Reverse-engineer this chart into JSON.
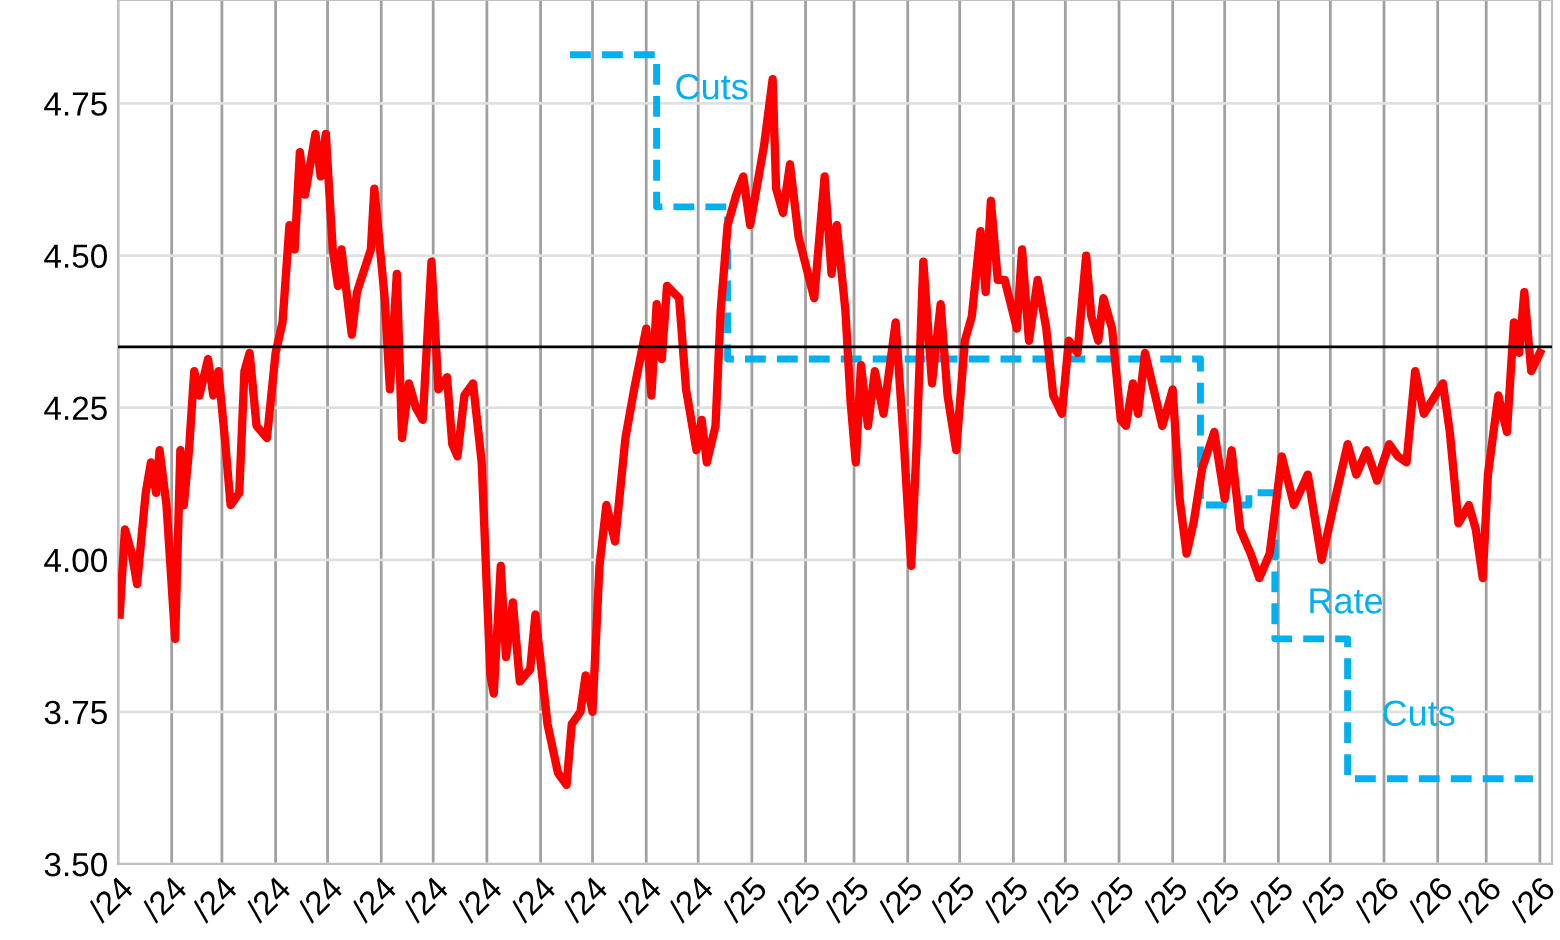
{
  "chart_data": {
    "type": "line",
    "xlim": [
      "2024-01-01",
      "2026-04-08"
    ],
    "xticks": [
      {
        "value": "2024-01-01",
        "label": "/24"
      },
      {
        "value": "2024-02-01",
        "label": "/24"
      },
      {
        "value": "2024-03-01",
        "label": "/24"
      },
      {
        "value": "2024-04-01",
        "label": "/24"
      },
      {
        "value": "2024-05-01",
        "label": "/24"
      },
      {
        "value": "2024-06-01",
        "label": "/24"
      },
      {
        "value": "2024-07-01",
        "label": "/24"
      },
      {
        "value": "2024-08-01",
        "label": "/24"
      },
      {
        "value": "2024-09-01",
        "label": "/24"
      },
      {
        "value": "2024-10-01",
        "label": "/24"
      },
      {
        "value": "2024-11-01",
        "label": "/24"
      },
      {
        "value": "2024-12-01",
        "label": "/24"
      },
      {
        "value": "2025-01-01",
        "label": "/25"
      },
      {
        "value": "2025-02-01",
        "label": "/25"
      },
      {
        "value": "2025-03-01",
        "label": "/25"
      },
      {
        "value": "2025-04-01",
        "label": "/25"
      },
      {
        "value": "2025-05-01",
        "label": "/25"
      },
      {
        "value": "2025-06-01",
        "label": "/25"
      },
      {
        "value": "2025-07-01",
        "label": "/25"
      },
      {
        "value": "2025-08-01",
        "label": "/25"
      },
      {
        "value": "2025-09-01",
        "label": "/25"
      },
      {
        "value": "2025-10-01",
        "label": "/25"
      },
      {
        "value": "2025-11-01",
        "label": "/25"
      },
      {
        "value": "2025-12-01",
        "label": "/25"
      },
      {
        "value": "2026-01-01",
        "label": "/26"
      },
      {
        "value": "2026-02-01",
        "label": "/26"
      },
      {
        "value": "2026-03-01",
        "label": "/26"
      },
      {
        "value": "2026-04-01",
        "label": "/26"
      }
    ],
    "ylim": [
      3.5,
      4.92
    ],
    "yticks": [
      {
        "value": 3.5,
        "label": "3.50"
      },
      {
        "value": 3.75,
        "label": "3.75"
      },
      {
        "value": 4.0,
        "label": "4.00"
      },
      {
        "value": 4.25,
        "label": "4.25"
      },
      {
        "value": 4.5,
        "label": "4.50"
      },
      {
        "value": 4.75,
        "label": "4.75"
      }
    ],
    "grid": true,
    "ref_lines": [
      {
        "axis": "y",
        "value": 4.35,
        "color": "#000000"
      }
    ],
    "annotations": [
      "Cuts",
      "Rate",
      "Cuts"
    ],
    "series": [
      {
        "color": "#ff0000",
        "line_style": "solid",
        "x": [
          "2024-01-02",
          "2024-01-05",
          "2024-01-09",
          "2024-01-12",
          "2024-01-17",
          "2024-01-20",
          "2024-01-23",
          "2024-01-25",
          "2024-01-29",
          "2024-02-03",
          "2024-02-06",
          "2024-02-08",
          "2024-02-11",
          "2024-02-14",
          "2024-02-17",
          "2024-02-22",
          "2024-02-25",
          "2024-02-28",
          "2024-03-03",
          "2024-03-06",
          "2024-03-11",
          "2024-03-14",
          "2024-03-17",
          "2024-03-21",
          "2024-03-27",
          "2024-04-01",
          "2024-04-05",
          "2024-04-09",
          "2024-04-12",
          "2024-04-15",
          "2024-04-18",
          "2024-04-24",
          "2024-04-27",
          "2024-04-30",
          "2024-05-04",
          "2024-05-07",
          "2024-05-09",
          "2024-05-15",
          "2024-05-18",
          "2024-05-26",
          "2024-05-28",
          "2024-06-03",
          "2024-06-06",
          "2024-06-10",
          "2024-06-13",
          "2024-06-17",
          "2024-06-21",
          "2024-06-25",
          "2024-06-30",
          "2024-07-04",
          "2024-07-09",
          "2024-07-12",
          "2024-07-15",
          "2024-07-19",
          "2024-07-24",
          "2024-07-29",
          "2024-08-03",
          "2024-08-05",
          "2024-08-09",
          "2024-08-12",
          "2024-08-16",
          "2024-08-20",
          "2024-08-26",
          "2024-08-29",
          "2024-09-05",
          "2024-09-11",
          "2024-09-16",
          "2024-09-19",
          "2024-09-24",
          "2024-09-27",
          "2024-10-01",
          "2024-10-05",
          "2024-10-09",
          "2024-10-14",
          "2024-10-20",
          "2024-10-25",
          "2024-11-01",
          "2024-11-04",
          "2024-11-07",
          "2024-11-10",
          "2024-11-13",
          "2024-11-20",
          "2024-11-24",
          "2024-11-30",
          "2024-12-03",
          "2024-12-06",
          "2024-12-11",
          "2024-12-14",
          "2024-12-18",
          "2024-12-23",
          "2024-12-27",
          "2024-12-31",
          "2025-01-08",
          "2025-01-13",
          "2025-01-15",
          "2025-01-19",
          "2025-01-23",
          "2025-01-28",
          "2025-02-06",
          "2025-02-12",
          "2025-02-16",
          "2025-02-19",
          "2025-02-24",
          "2025-02-27",
          "2025-03-02",
          "2025-03-05",
          "2025-03-09",
          "2025-03-13",
          "2025-03-18",
          "2025-03-25",
          "2025-03-30",
          "2025-04-03",
          "2025-04-06",
          "2025-04-10",
          "2025-04-15",
          "2025-04-20",
          "2025-04-24",
          "2025-04-29",
          "2025-05-04",
          "2025-05-08",
          "2025-05-13",
          "2025-05-16",
          "2025-05-19",
          "2025-05-23",
          "2025-05-27",
          "2025-06-03",
          "2025-06-06",
          "2025-06-10",
          "2025-06-15",
          "2025-06-20",
          "2025-06-24",
          "2025-06-29",
          "2025-07-03",
          "2025-07-08",
          "2025-07-13",
          "2025-07-16",
          "2025-07-20",
          "2025-07-23",
          "2025-07-28",
          "2025-08-02",
          "2025-08-05",
          "2025-08-09",
          "2025-08-12",
          "2025-08-16",
          "2025-08-21",
          "2025-08-26",
          "2025-09-01",
          "2025-09-05",
          "2025-09-09",
          "2025-09-13",
          "2025-09-18",
          "2025-09-25",
          "2025-10-01",
          "2025-10-05",
          "2025-10-10",
          "2025-10-16",
          "2025-10-21",
          "2025-10-27",
          "2025-11-03",
          "2025-11-10",
          "2025-11-18",
          "2025-11-26",
          "2025-12-03",
          "2025-12-11",
          "2025-12-16",
          "2025-12-22",
          "2025-12-28",
          "2026-01-04",
          "2026-01-09",
          "2026-01-14",
          "2026-01-19",
          "2026-01-24",
          "2026-02-04",
          "2026-02-08",
          "2026-02-13",
          "2026-02-19",
          "2026-02-23",
          "2026-02-27",
          "2026-03-02",
          "2026-03-08",
          "2026-03-13",
          "2026-03-17",
          "2026-03-20",
          "2026-03-23",
          "2026-03-27",
          "2026-04-01"
        ],
        "values": [
          3.91,
          4.05,
          4.01,
          3.96,
          4.11,
          4.16,
          4.11,
          4.18,
          4.09,
          3.87,
          4.18,
          4.09,
          4.18,
          4.31,
          4.27,
          4.33,
          4.27,
          4.31,
          4.19,
          4.09,
          4.11,
          4.31,
          4.34,
          4.22,
          4.2,
          4.34,
          4.39,
          4.55,
          4.51,
          4.67,
          4.6,
          4.7,
          4.63,
          4.7,
          4.51,
          4.45,
          4.51,
          4.37,
          4.44,
          4.51,
          4.61,
          4.43,
          4.28,
          4.47,
          4.2,
          4.29,
          4.25,
          4.23,
          4.49,
          4.28,
          4.3,
          4.19,
          4.17,
          4.27,
          4.29,
          4.16,
          3.81,
          3.78,
          3.99,
          3.84,
          3.93,
          3.8,
          3.82,
          3.91,
          3.73,
          3.65,
          3.63,
          3.73,
          3.75,
          3.81,
          3.75,
          3.99,
          4.09,
          4.03,
          4.2,
          4.28,
          4.38,
          4.27,
          4.42,
          4.33,
          4.45,
          4.43,
          4.28,
          4.18,
          4.23,
          4.16,
          4.22,
          4.41,
          4.55,
          4.6,
          4.63,
          4.55,
          4.68,
          4.79,
          4.61,
          4.57,
          4.65,
          4.53,
          4.43,
          4.63,
          4.47,
          4.55,
          4.41,
          4.26,
          4.16,
          4.32,
          4.22,
          4.31,
          4.24,
          4.39,
          4.18,
          3.99,
          4.18,
          4.49,
          4.29,
          4.42,
          4.27,
          4.18,
          4.36,
          4.4,
          4.54,
          4.44,
          4.59,
          4.46,
          4.46,
          4.38,
          4.51,
          4.36,
          4.46,
          4.38,
          4.27,
          4.24,
          4.36,
          4.34,
          4.5,
          4.4,
          4.36,
          4.43,
          4.38,
          4.23,
          4.22,
          4.29,
          4.24,
          4.34,
          4.28,
          4.22,
          4.28,
          4.1,
          4.01,
          4.06,
          4.15,
          4.21,
          4.1,
          4.18,
          4.05,
          4.01,
          3.97,
          4.01,
          4.17,
          4.09,
          4.14,
          4.0,
          4.09,
          4.19,
          4.14,
          4.18,
          4.13,
          4.19,
          4.17,
          4.16,
          4.31,
          4.24,
          4.29,
          4.21,
          4.06,
          4.09,
          4.05,
          3.97,
          4.14,
          4.27,
          4.21,
          4.39,
          4.34,
          4.44,
          4.31,
          4.34
        ]
      },
      {
        "type": "step",
        "color": "#00b0f0",
        "line_style": "dashed",
        "x": [
          "2024-09-18",
          "2024-11-07",
          "2024-12-18",
          "2025-09-17",
          "2025-10-15",
          "2025-10-30",
          "2025-12-11",
          "2026-03-28"
        ],
        "values": [
          4.83,
          4.58,
          4.33,
          4.09,
          4.11,
          3.87,
          3.64,
          3.64
        ]
      }
    ]
  }
}
